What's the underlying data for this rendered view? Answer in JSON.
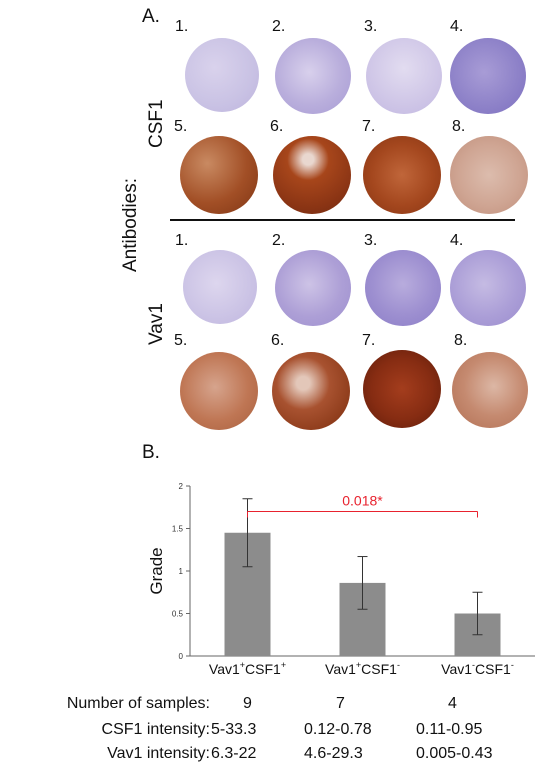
{
  "panel_a": {
    "label": "A.",
    "side_label": "Antibodies:",
    "groups": [
      {
        "name": "CSF1",
        "numbers": [
          "1.",
          "2.",
          "3.",
          "4.",
          "5.",
          "6.",
          "7.",
          "8."
        ]
      },
      {
        "name": "Vav1",
        "numbers": [
          "1.",
          "2.",
          "3.",
          "4.",
          "5.",
          "6.",
          "7.",
          "8."
        ]
      }
    ],
    "colors": {
      "hematoxylin_light": "#c9c2e4",
      "hematoxylin_dark": "#8f83c9",
      "dab_light": "#d9b5a4",
      "dab_mid": "#b0552a",
      "dab_dark": "#7a2b12"
    }
  },
  "panel_b": {
    "label": "B.",
    "significance_text": "0.018*",
    "significance_color": "#e8222e",
    "bar_color": "#8c8c8c"
  },
  "chart_data": {
    "type": "bar",
    "categories": [
      {
        "base1": "Vav1",
        "sup1": "+",
        "base2": "CSF1",
        "sup2": "+"
      },
      {
        "base1": "Vav1",
        "sup1": "+",
        "base2": "CSF1",
        "sup2": "-"
      },
      {
        "base1": "Vav1",
        "sup1": "-",
        "base2": "CSF1",
        "sup2": "-"
      }
    ],
    "values": [
      1.45,
      0.86,
      0.5
    ],
    "error_low": [
      1.05,
      0.55,
      0.25
    ],
    "error_high": [
      1.85,
      1.17,
      0.75
    ],
    "ylabel": "Grade",
    "ylim": [
      0,
      2
    ],
    "yticks": [
      "0",
      "0.5",
      "1",
      "1.5",
      "2"
    ],
    "grid": false
  },
  "table": {
    "rows": [
      {
        "label": "Number of samples:",
        "values": [
          "9",
          "7",
          "4"
        ]
      },
      {
        "label": "CSF1 intensity:",
        "values": [
          "5-33.3",
          "0.12-0.78",
          "0.11-0.95"
        ]
      },
      {
        "label": "Vav1 intensity:",
        "values": [
          "6.3-22",
          "4.6-29.3",
          "0.005-0.43"
        ]
      }
    ]
  }
}
